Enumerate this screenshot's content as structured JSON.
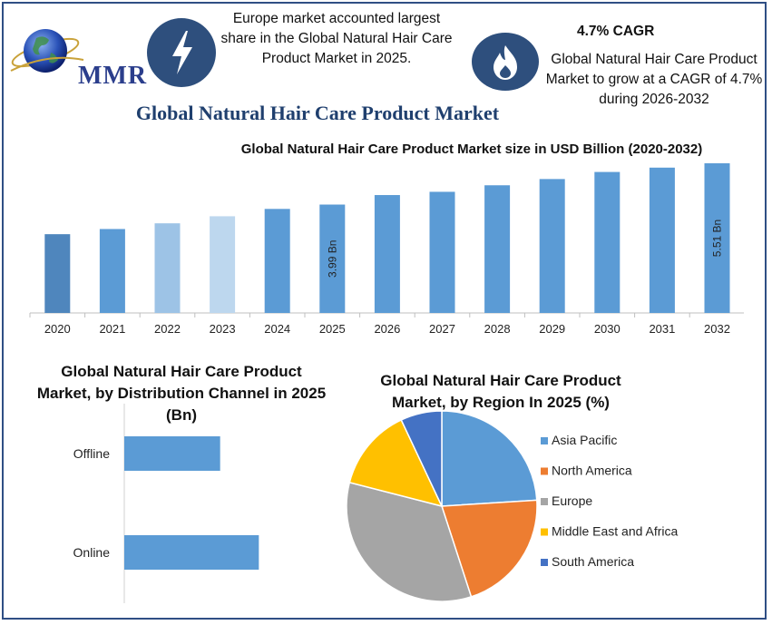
{
  "brand": {
    "logo_text": "MMR"
  },
  "header": {
    "info_left": "Europe market accounted largest share in the Global Natural Hair Care Product Market in 2025.",
    "cagr_title": "4.7% CAGR",
    "info_right": "Global Natural Hair Care Product Market to grow at a CAGR of 4.7% during 2026-2032",
    "main_title": "Global Natural Hair Care Product Market"
  },
  "colors": {
    "frame": "#2f4e84",
    "icon_bg": "#2e4f7d",
    "bar": "#5b9bd5",
    "title_blue": "#1f3f6e"
  },
  "icons": [
    "globe-icon",
    "lightning-icon",
    "flame-icon"
  ],
  "chart_data": [
    {
      "type": "bar",
      "title": "Global Natural Hair Care Product Market size in USD Billion (2020-2032)",
      "categories": [
        "2020",
        "2021",
        "2022",
        "2023",
        "2024",
        "2025",
        "2026",
        "2027",
        "2028",
        "2029",
        "2030",
        "2031",
        "2032"
      ],
      "values": [
        2.9,
        3.09,
        3.3,
        3.56,
        3.83,
        3.99,
        4.34,
        4.46,
        4.7,
        4.93,
        5.19,
        5.35,
        5.51
      ],
      "bar_colors": [
        "#4f86bd",
        "#5b9bd5",
        "#9dc3e6",
        "#bdd7ee",
        "#5b9bd5",
        "#5b9bd5",
        "#5b9bd5",
        "#5b9bd5",
        "#5b9bd5",
        "#5b9bd5",
        "#5b9bd5",
        "#5b9bd5",
        "#5b9bd5"
      ],
      "data_labels": {
        "2025": "3.99 Bn",
        "2032": "5.51 Bn"
      },
      "ylim": [
        0,
        5.51
      ],
      "grid": false
    },
    {
      "type": "bar",
      "orientation": "horizontal",
      "title": "Global Natural Hair Care Product Market, by Distribution Channel in 2025 (Bn)",
      "categories": [
        "Offline",
        "Online"
      ],
      "values": [
        1.66,
        2.33
      ],
      "xlim": [
        0,
        3.99
      ],
      "color": "#5b9bd5"
    },
    {
      "type": "pie",
      "title": "Global Natural Hair Care Product Market, by Region In 2025 (%)",
      "labels": [
        "Asia Pacific",
        "North America",
        "Europe",
        "Middle East and Africa",
        "South America"
      ],
      "values": [
        24,
        21,
        34,
        14,
        7
      ],
      "colors": [
        "#5b9bd5",
        "#ed7d31",
        "#a5a5a5",
        "#ffc000",
        "#4472c4"
      ],
      "legend": "right"
    }
  ]
}
